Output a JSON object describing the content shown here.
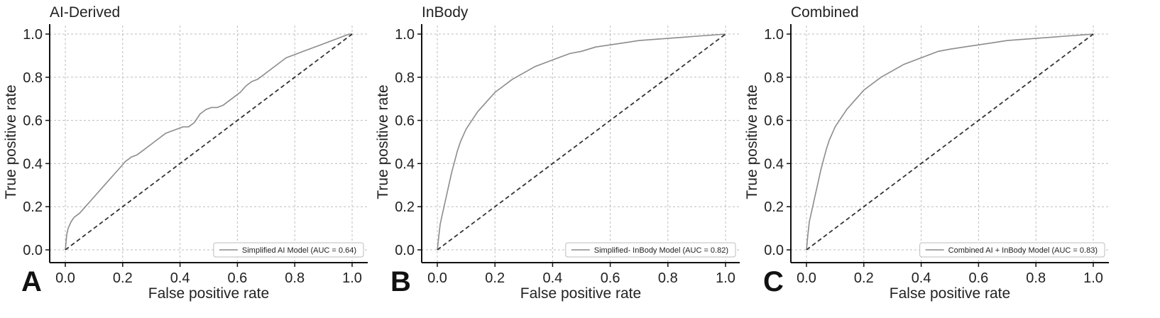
{
  "figure": {
    "panel_letters": [
      "A",
      "B",
      "C"
    ]
  },
  "colors": {
    "roc_line": "#8c8c8c",
    "diagonal": "#333333",
    "grid": "#bdbdbd",
    "axis": "#111111",
    "legend_border": "#bdbdbd"
  },
  "chart_data": [
    {
      "type": "line",
      "title": "AI-Derived",
      "xlabel": "False positive rate",
      "ylabel": "True positive rate",
      "xlim": [
        0.0,
        1.0
      ],
      "ylim": [
        0.0,
        1.0
      ],
      "xticks": [
        "0.0",
        "0.2",
        "0.4",
        "0.6",
        "0.8",
        "1.0"
      ],
      "yticks": [
        "0.0",
        "0.2",
        "0.4",
        "0.6",
        "0.8",
        "1.0"
      ],
      "grid": true,
      "legend_position": "bottom-right",
      "series": [
        {
          "name": "Simplified AI Model (AUC = 0.64)",
          "x": [
            0.0,
            0.005,
            0.01,
            0.02,
            0.03,
            0.05,
            0.07,
            0.09,
            0.11,
            0.13,
            0.15,
            0.17,
            0.19,
            0.21,
            0.23,
            0.25,
            0.27,
            0.29,
            0.31,
            0.33,
            0.35,
            0.37,
            0.39,
            0.41,
            0.43,
            0.45,
            0.47,
            0.49,
            0.51,
            0.53,
            0.55,
            0.57,
            0.59,
            0.61,
            0.63,
            0.65,
            0.67,
            0.69,
            0.71,
            0.73,
            0.75,
            0.77,
            0.79,
            0.81,
            0.83,
            0.85,
            0.87,
            0.89,
            0.91,
            0.93,
            0.95,
            0.97,
            0.99,
            1.0
          ],
          "y": [
            0.0,
            0.07,
            0.1,
            0.13,
            0.15,
            0.17,
            0.2,
            0.23,
            0.26,
            0.29,
            0.32,
            0.35,
            0.38,
            0.41,
            0.43,
            0.44,
            0.46,
            0.48,
            0.5,
            0.52,
            0.54,
            0.55,
            0.56,
            0.57,
            0.57,
            0.59,
            0.63,
            0.65,
            0.66,
            0.66,
            0.67,
            0.69,
            0.71,
            0.73,
            0.76,
            0.78,
            0.79,
            0.81,
            0.83,
            0.85,
            0.87,
            0.89,
            0.9,
            0.91,
            0.92,
            0.93,
            0.94,
            0.95,
            0.96,
            0.97,
            0.98,
            0.99,
            1.0,
            1.0
          ]
        },
        {
          "name": "",
          "style": "dashed",
          "x": [
            0.0,
            1.0
          ],
          "y": [
            0.0,
            1.0
          ]
        }
      ]
    },
    {
      "type": "line",
      "title": "InBody",
      "xlabel": "False positive rate",
      "ylabel": "True positive rate",
      "xlim": [
        0.0,
        1.0
      ],
      "ylim": [
        0.0,
        1.0
      ],
      "xticks": [
        "0.0",
        "0.2",
        "0.4",
        "0.6",
        "0.8",
        "1.0"
      ],
      "yticks": [
        "0.0",
        "0.2",
        "0.4",
        "0.6",
        "0.8",
        "1.0"
      ],
      "grid": true,
      "legend_position": "bottom-right",
      "series": [
        {
          "name": "Simplified- InBody Model (AUC = 0.82)",
          "x": [
            0.0,
            0.005,
            0.01,
            0.02,
            0.03,
            0.04,
            0.05,
            0.06,
            0.07,
            0.08,
            0.09,
            0.1,
            0.12,
            0.14,
            0.16,
            0.18,
            0.2,
            0.23,
            0.26,
            0.3,
            0.34,
            0.38,
            0.42,
            0.46,
            0.5,
            0.55,
            0.6,
            0.65,
            0.7,
            0.75,
            0.8,
            0.85,
            0.9,
            0.95,
            1.0
          ],
          "y": [
            0.0,
            0.06,
            0.12,
            0.18,
            0.24,
            0.3,
            0.36,
            0.41,
            0.46,
            0.5,
            0.53,
            0.56,
            0.6,
            0.64,
            0.67,
            0.7,
            0.73,
            0.76,
            0.79,
            0.82,
            0.85,
            0.87,
            0.89,
            0.91,
            0.92,
            0.94,
            0.95,
            0.96,
            0.97,
            0.975,
            0.98,
            0.985,
            0.99,
            0.995,
            1.0
          ]
        },
        {
          "name": "",
          "style": "dashed",
          "x": [
            0.0,
            1.0
          ],
          "y": [
            0.0,
            1.0
          ]
        }
      ]
    },
    {
      "type": "line",
      "title": "Combined",
      "xlabel": "False positive rate",
      "ylabel": "True positive rate",
      "xlim": [
        0.0,
        1.0
      ],
      "ylim": [
        0.0,
        1.0
      ],
      "xticks": [
        "0.0",
        "0.2",
        "0.4",
        "0.6",
        "0.8",
        "1.0"
      ],
      "yticks": [
        "0.0",
        "0.2",
        "0.4",
        "0.6",
        "0.8",
        "1.0"
      ],
      "grid": true,
      "legend_position": "bottom-right",
      "series": [
        {
          "name": "Combined AI + InBody Model (AUC = 0.83)",
          "x": [
            0.0,
            0.005,
            0.01,
            0.02,
            0.03,
            0.04,
            0.05,
            0.06,
            0.07,
            0.08,
            0.09,
            0.1,
            0.12,
            0.14,
            0.16,
            0.18,
            0.2,
            0.23,
            0.26,
            0.3,
            0.34,
            0.38,
            0.42,
            0.46,
            0.5,
            0.55,
            0.6,
            0.65,
            0.7,
            0.75,
            0.8,
            0.85,
            0.9,
            0.95,
            1.0
          ],
          "y": [
            0.0,
            0.07,
            0.13,
            0.19,
            0.25,
            0.31,
            0.37,
            0.42,
            0.47,
            0.51,
            0.54,
            0.57,
            0.61,
            0.65,
            0.68,
            0.71,
            0.74,
            0.77,
            0.8,
            0.83,
            0.86,
            0.88,
            0.9,
            0.92,
            0.93,
            0.94,
            0.95,
            0.96,
            0.97,
            0.975,
            0.98,
            0.985,
            0.99,
            0.995,
            1.0
          ]
        },
        {
          "name": "",
          "style": "dashed",
          "x": [
            0.0,
            1.0
          ],
          "y": [
            0.0,
            1.0
          ]
        }
      ]
    }
  ]
}
